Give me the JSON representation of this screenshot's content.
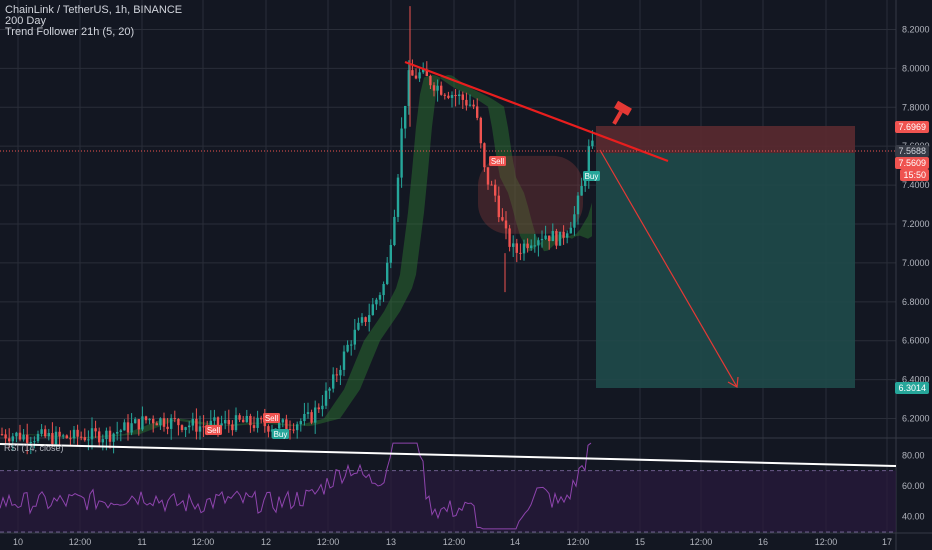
{
  "legend": {
    "symbol": "ChainLink / TetherUS, 1h, BINANCE",
    "ma": "200 Day",
    "indicator": "Trend Follower 21h (5, 20)"
  },
  "rsi_label": "RSI (14, close)",
  "price_axis": {
    "ticks": [
      "8.2000",
      "8.0000",
      "7.8000",
      "7.6000",
      "7.4000",
      "7.2000",
      "7.0000",
      "6.8000",
      "6.6000",
      "6.4000",
      "6.2000"
    ],
    "tick_values": [
      8.2,
      8.0,
      7.8,
      7.6,
      7.4,
      7.2,
      7.0,
      6.8,
      6.6,
      6.4,
      6.2
    ],
    "labels": {
      "stop": "7.6969",
      "last": "7.5688",
      "entry": "7.5609",
      "countdown": "15:50",
      "target": "6.3014"
    }
  },
  "rsi_axis": {
    "ticks": [
      "80.00",
      "60.00",
      "40.00"
    ],
    "tick_values": [
      80,
      60,
      40
    ]
  },
  "time_axis": [
    "10",
    "12:00",
    "11",
    "12:00",
    "12",
    "12:00",
    "13",
    "12:00",
    "14",
    "12:00",
    "15",
    "12:00",
    "16",
    "12:00",
    "17"
  ],
  "signals": {
    "sell": "Sell",
    "buy": "Buy"
  },
  "colors": {
    "bg": "#131722",
    "up": "#26a69a",
    "down": "#ef5350",
    "grid": "#2a2e39",
    "trendline": "#e91e1e",
    "rsi": "#8e44ad",
    "target_zone": "#1f4a4a",
    "stop_zone": "#5b2a30"
  },
  "chart_data": {
    "type": "candlestick",
    "price_range": [
      6.1,
      8.3
    ],
    "rsi_range": [
      30,
      90
    ],
    "key_levels": {
      "stop": 7.6969,
      "last": 7.5688,
      "entry": 7.5609,
      "target": 6.3014
    },
    "rsi_levels": [
      70,
      30
    ]
  }
}
